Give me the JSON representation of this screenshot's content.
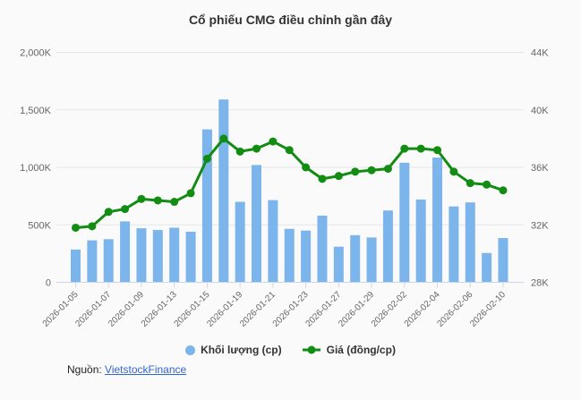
{
  "title": "Cổ phiếu CMG điều chỉnh gần đây",
  "legend": {
    "volume_label": "Khối lượng (cp)",
    "price_label": "Giá (đồng/cp)"
  },
  "source": {
    "label": "Nguồn:",
    "link_text": "VietstockFinance"
  },
  "colors": {
    "bar": "#7cb5ec",
    "line": "#128c12",
    "grid": "#e6e6e6",
    "axis_line": "#ccd6eb",
    "axis_text": "#666666",
    "title_text": "#333333",
    "link": "#3366cc",
    "background": "#fafafa"
  },
  "chart_data": {
    "type": "bar+line combo",
    "title": "Cổ phiếu CMG điều chỉnh gần đây",
    "grid": true,
    "legend_position": "bottom",
    "categories": [
      "2026-01-05",
      "2026-01-06",
      "2026-01-07",
      "2026-01-08",
      "2026-01-09",
      "2026-01-12",
      "2026-01-13",
      "2026-01-14",
      "2026-01-15",
      "2026-01-16",
      "2026-01-19",
      "2026-01-20",
      "2026-01-21",
      "2026-01-22",
      "2026-01-23",
      "2026-01-26",
      "2026-01-27",
      "2026-01-28",
      "2026-01-29",
      "2026-01-30",
      "2026-02-02",
      "2026-02-03",
      "2026-02-04",
      "2026-02-05",
      "2026-02-06",
      "2026-02-09",
      "2026-02-10"
    ],
    "x_tick_labels": [
      "2026-01-05",
      "2026-01-07",
      "2026-01-09",
      "2026-01-13",
      "2026-01-15",
      "2026-01-19",
      "2026-01-21",
      "2026-01-23",
      "2026-01-27",
      "2026-01-29",
      "2026-02-02",
      "2026-02-04",
      "2026-02-06",
      "2026-02-10"
    ],
    "x_label_every": 2,
    "series": [
      {
        "name": "Khối lượng (cp)",
        "type": "bar",
        "axis": "left",
        "unit": "cp",
        "values": [
          285000,
          365000,
          375000,
          530000,
          470000,
          455000,
          475000,
          440000,
          1330000,
          1590000,
          700000,
          1020000,
          715000,
          465000,
          450000,
          580000,
          310000,
          410000,
          390000,
          625000,
          1040000,
          720000,
          1085000,
          660000,
          695000,
          255000,
          385000
        ]
      },
      {
        "name": "Giá (đồng/cp)",
        "type": "line",
        "axis": "right",
        "unit": "đồng/cp",
        "values": [
          31800,
          31900,
          32900,
          33100,
          33800,
          33700,
          33600,
          34200,
          36600,
          38000,
          37100,
          37300,
          37800,
          37200,
          36000,
          35200,
          35400,
          35700,
          35800,
          35900,
          37300,
          37300,
          37200,
          35700,
          34900,
          34800,
          34400
        ]
      }
    ],
    "left_axis": {
      "min": 0,
      "max": 2000000,
      "tick_values": [
        0,
        500000,
        1000000,
        1500000,
        2000000
      ],
      "tick_labels": [
        "0",
        "500K",
        "1,000K",
        "1,500K",
        "2,000K"
      ]
    },
    "right_axis": {
      "min": 28000,
      "max": 44000,
      "tick_values": [
        28000,
        32000,
        36000,
        40000,
        44000
      ],
      "tick_labels": [
        "28K",
        "32K",
        "36K",
        "40K",
        "44K"
      ]
    }
  }
}
